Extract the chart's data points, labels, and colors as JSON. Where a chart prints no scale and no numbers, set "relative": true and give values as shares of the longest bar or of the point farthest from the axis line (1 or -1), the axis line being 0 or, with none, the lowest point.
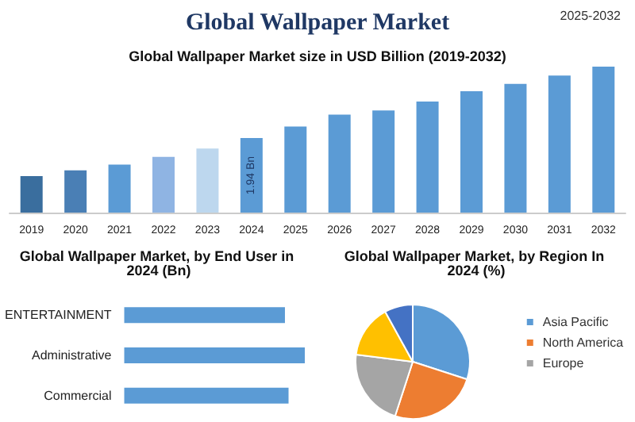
{
  "chart_data": [
    {
      "type": "bar",
      "title": "Global Wallpaper Market",
      "subtitle": "Global Wallpaper Market size in USD Billion (2019-2032)",
      "annotations": [
        "2025-2032"
      ],
      "tick_labels": "x",
      "categories": [
        "2019",
        "2020",
        "2021",
        "2022",
        "2023",
        "2024",
        "2025",
        "2026",
        "2027",
        "2028",
        "2029",
        "2030",
        "2031",
        "2032"
      ],
      "values": [
        0.95,
        1.1,
        1.25,
        1.45,
        1.67,
        1.94,
        2.24,
        2.55,
        2.66,
        2.89,
        3.16,
        3.35,
        3.57,
        3.8
      ],
      "colors": [
        "#3a6e9e",
        "#4a7fb5",
        "#5b9bd5",
        "#8fb4e3",
        "#bdd7ee",
        "#5b9bd5",
        "#5b9bd5",
        "#5b9bd5",
        "#5b9bd5",
        "#5b9bd5",
        "#5b9bd5",
        "#5b9bd5",
        "#5b9bd5",
        "#5b9bd5"
      ],
      "value_labels": [
        null,
        null,
        null,
        null,
        null,
        "1.94 Bn",
        null,
        null,
        null,
        null,
        null,
        null,
        null,
        null
      ]
    },
    {
      "type": "bar",
      "orientation": "horizontal",
      "title": "Global Wallpaper Market, by End User in 2024 (Bn)",
      "relative": true,
      "categories": [
        "ENTERTAINMENT",
        "Administrative",
        "Commercial"
      ],
      "values": [
        0.89,
        1,
        0.91
      ],
      "color": "#5b9bd5"
    },
    {
      "type": "pie",
      "title": "Global Wallpaper Market, by Region In 2024 (%)",
      "categories": [
        "Asia Pacific",
        "North America",
        "Europe",
        null,
        null
      ],
      "values": [
        30,
        25,
        22,
        15,
        8
      ],
      "colors": [
        "#5b9bd5",
        "#ed7d31",
        "#a5a5a5",
        "#ffc000",
        "#4472c4"
      ],
      "legend": "right"
    }
  ]
}
